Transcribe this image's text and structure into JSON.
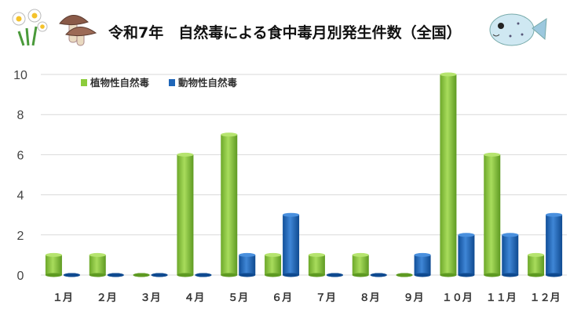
{
  "chart_data": {
    "type": "bar",
    "title": "令和7年　自然毒による食中毒月別発生件数（全国）",
    "categories": [
      "１月",
      "２月",
      "３月",
      "４月",
      "５月",
      "６月",
      "７月",
      "８月",
      "９月",
      "１０月",
      "１１月",
      "１２月"
    ],
    "series": [
      {
        "name": "植物性自然毒",
        "color": "#8ccc3c",
        "values": [
          1,
          1,
          0,
          6,
          7,
          1,
          1,
          1,
          0,
          10,
          6,
          1
        ]
      },
      {
        "name": "動物性自然毒",
        "color": "#1f66b8",
        "values": [
          0,
          0,
          0,
          0,
          1,
          3,
          0,
          0,
          1,
          2,
          2,
          3
        ]
      }
    ],
    "ylim": [
      0,
      10
    ],
    "yticks": [
      0,
      2,
      4,
      6,
      8,
      10
    ],
    "grid": true,
    "legend": "top-left",
    "illustrations": [
      "narcissus-icon",
      "mushroom-icon",
      "pufferfish-icon"
    ]
  }
}
